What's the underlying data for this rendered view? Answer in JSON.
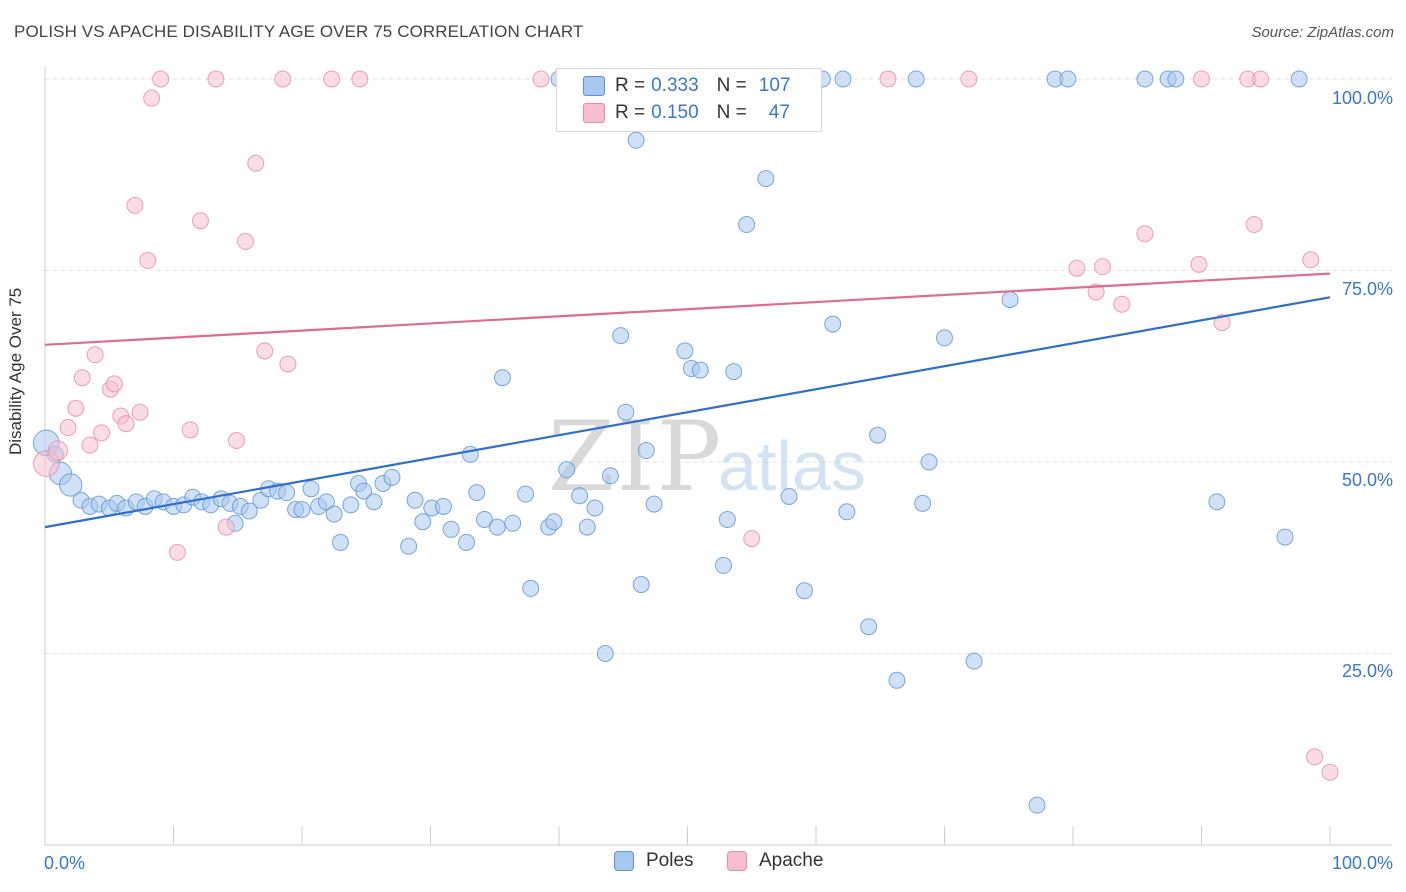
{
  "title": "POLISH VS APACHE DISABILITY AGE OVER 75 CORRELATION CHART",
  "source": "Source: ZipAtlas.com",
  "watermark": {
    "zip": "ZIP",
    "atlas": "atlas"
  },
  "legend": {
    "poles": {
      "r_label": "R =",
      "r_value": "0.333",
      "n_label": "N =",
      "n_value": "107"
    },
    "apache": {
      "r_label": "R =",
      "r_value": "0.150",
      "n_label": "N =",
      "n_value": "47"
    }
  },
  "colors": {
    "poles_fill": "#a9c8ef",
    "poles_stroke": "#5b93d6",
    "poles_line": "#2f6fcc",
    "apache_fill": "#f6bfd0",
    "apache_stroke": "#e98aa8",
    "apache_line": "#e06a92",
    "tick_label": "#3a78c9"
  },
  "chart_data": {
    "type": "scatter",
    "xlabel": "",
    "ylabel": "Disability Age Over 75",
    "xlim": [
      0,
      100
    ],
    "ylim": [
      0,
      100
    ],
    "x_tick_labels": [
      {
        "value": 0,
        "label": "0.0%"
      },
      {
        "value": 100,
        "label": "100.0%"
      }
    ],
    "y_tick_labels": [
      {
        "value": 100,
        "label": "100.0%"
      },
      {
        "value": 75,
        "label": "75.0%"
      },
      {
        "value": 50,
        "label": "50.0%"
      },
      {
        "value": 25,
        "label": "25.0%"
      }
    ],
    "grid": true,
    "series": [
      {
        "name": "Poles",
        "trend": [
          [
            0,
            41.5
          ],
          [
            100,
            71.5
          ]
        ],
        "points": [
          [
            0.1,
            52.5,
            1.6
          ],
          [
            0.8,
            51,
            1
          ],
          [
            1.2,
            48.5,
            1.4
          ],
          [
            2,
            47,
            1.4
          ],
          [
            2.8,
            45,
            1
          ],
          [
            3.5,
            44.2,
            1
          ],
          [
            4.2,
            44.5,
            1
          ],
          [
            5,
            44,
            1
          ],
          [
            5.6,
            44.6,
            1
          ],
          [
            6.3,
            44,
            1
          ],
          [
            7.1,
            44.8,
            1
          ],
          [
            7.8,
            44.2,
            1
          ],
          [
            8.5,
            45.2,
            1
          ],
          [
            9.2,
            44.8,
            1
          ],
          [
            10,
            44.2,
            1
          ],
          [
            10.8,
            44.4,
            1
          ],
          [
            11.5,
            45.4,
            1
          ],
          [
            12.2,
            44.8,
            1
          ],
          [
            12.9,
            44.4,
            1
          ],
          [
            13.7,
            45.2,
            1
          ],
          [
            14.4,
            44.6,
            1
          ],
          [
            15.2,
            44.2,
            1
          ],
          [
            14.8,
            42,
            1
          ],
          [
            15.9,
            43.6,
            1
          ],
          [
            16.8,
            45,
            1
          ],
          [
            17.4,
            46.5,
            1
          ],
          [
            18.1,
            46.2,
            1
          ],
          [
            18.8,
            46,
            1
          ],
          [
            19.5,
            43.8,
            1
          ],
          [
            20,
            43.8,
            1
          ],
          [
            20.7,
            46.5,
            1
          ],
          [
            21.3,
            44.2,
            1
          ],
          [
            21.9,
            44.8,
            1
          ],
          [
            22.5,
            43.2,
            1
          ],
          [
            23,
            39.5,
            1
          ],
          [
            23.8,
            44.4,
            1
          ],
          [
            24.4,
            47.2,
            1
          ],
          [
            24.8,
            46.2,
            1
          ],
          [
            25.6,
            44.8,
            1
          ],
          [
            26.3,
            47.2,
            1
          ],
          [
            27,
            48,
            1
          ],
          [
            28.3,
            39,
            1
          ],
          [
            28.8,
            45,
            1
          ],
          [
            29.4,
            42.2,
            1
          ],
          [
            30.1,
            44,
            1
          ],
          [
            31,
            44.2,
            1
          ],
          [
            31.6,
            41.2,
            1
          ],
          [
            32.8,
            39.5,
            1
          ],
          [
            33.1,
            51,
            1
          ],
          [
            33.6,
            46,
            1
          ],
          [
            34.2,
            42.5,
            1
          ],
          [
            35.2,
            41.5,
            1
          ],
          [
            35.6,
            61,
            1
          ],
          [
            36.4,
            42,
            1
          ],
          [
            37.4,
            45.8,
            1
          ],
          [
            37.8,
            33.5,
            1
          ],
          [
            39.2,
            41.5,
            1
          ],
          [
            39.6,
            42.2,
            1
          ],
          [
            40.6,
            49,
            1
          ],
          [
            41.6,
            45.6,
            1
          ],
          [
            42.2,
            41.5,
            1
          ],
          [
            42.8,
            44,
            1
          ],
          [
            43.6,
            25,
            1
          ],
          [
            44,
            48.2,
            1
          ],
          [
            44.8,
            66.5,
            1
          ],
          [
            45.2,
            56.5,
            1
          ],
          [
            46.4,
            34,
            1
          ],
          [
            46,
            92,
            1
          ],
          [
            46.8,
            51.5,
            1
          ],
          [
            47.4,
            44.5,
            1
          ],
          [
            49.8,
            64.5,
            1
          ],
          [
            50.3,
            62.2,
            1
          ],
          [
            51,
            62,
            1
          ],
          [
            52.8,
            36.5,
            1
          ],
          [
            53.1,
            42.5,
            1
          ],
          [
            53.6,
            61.8,
            1
          ],
          [
            54.6,
            81,
            1
          ],
          [
            56.1,
            87,
            1
          ],
          [
            56.6,
            100,
            1
          ],
          [
            57.9,
            45.5,
            1
          ],
          [
            59.1,
            33.2,
            1
          ],
          [
            61.3,
            68,
            1
          ],
          [
            62.4,
            43.5,
            1
          ],
          [
            64.1,
            28.5,
            1
          ],
          [
            64.8,
            53.5,
            1
          ],
          [
            66.3,
            21.5,
            1
          ],
          [
            68.3,
            44.6,
            1
          ],
          [
            68.8,
            50,
            1
          ],
          [
            70,
            66.2,
            1
          ],
          [
            72.3,
            24,
            1
          ],
          [
            75.1,
            71.2,
            1
          ],
          [
            77.2,
            5.2,
            1
          ],
          [
            78.6,
            100,
            1
          ],
          [
            79.6,
            100,
            1
          ],
          [
            85.6,
            100,
            1
          ],
          [
            87.4,
            100,
            1
          ],
          [
            88,
            100,
            1
          ],
          [
            97.6,
            100,
            1
          ],
          [
            91.2,
            44.8,
            1
          ],
          [
            96.5,
            40.2,
            1
          ],
          [
            60.5,
            100,
            1
          ],
          [
            58.2,
            100,
            1
          ],
          [
            62.1,
            100,
            1
          ],
          [
            67.8,
            100,
            1
          ],
          [
            40,
            100,
            1
          ],
          [
            47,
            100,
            1
          ],
          [
            51,
            100,
            1
          ]
        ]
      },
      {
        "name": "Apache",
        "trend": [
          [
            0,
            65.3
          ],
          [
            100,
            74.6
          ]
        ],
        "points": [
          [
            0.1,
            49.8,
            1.6
          ],
          [
            1.0,
            51.5,
            1.2
          ],
          [
            1.8,
            54.5,
            1
          ],
          [
            2.4,
            57,
            1
          ],
          [
            2.9,
            61,
            1
          ],
          [
            3.5,
            52.2,
            1
          ],
          [
            3.9,
            64,
            1
          ],
          [
            4.4,
            53.8,
            1
          ],
          [
            5.1,
            59.5,
            1
          ],
          [
            5.4,
            60.2,
            1
          ],
          [
            5.9,
            56,
            1
          ],
          [
            6.3,
            55,
            1
          ],
          [
            7.0,
            83.5,
            1
          ],
          [
            7.4,
            56.5,
            1
          ],
          [
            8.0,
            76.3,
            1
          ],
          [
            8.3,
            97.5,
            1
          ],
          [
            9.0,
            100,
            1
          ],
          [
            10.3,
            38.2,
            1
          ],
          [
            11.3,
            54.2,
            1
          ],
          [
            12.1,
            81.5,
            1
          ],
          [
            13.3,
            100,
            1
          ],
          [
            14.1,
            41.5,
            1
          ],
          [
            14.9,
            52.8,
            1
          ],
          [
            15.6,
            78.8,
            1
          ],
          [
            16.4,
            89,
            1
          ],
          [
            17.1,
            64.5,
            1
          ],
          [
            18.5,
            100,
            1
          ],
          [
            18.9,
            62.8,
            1
          ],
          [
            22.3,
            100,
            1
          ],
          [
            24.5,
            100,
            1
          ],
          [
            38.6,
            100,
            1
          ],
          [
            43.2,
            100,
            1
          ],
          [
            55,
            40,
            1
          ],
          [
            65.6,
            100,
            1
          ],
          [
            71.9,
            100,
            1
          ],
          [
            80.3,
            75.3,
            1
          ],
          [
            81.8,
            72.2,
            1
          ],
          [
            82.3,
            75.5,
            1
          ],
          [
            83.8,
            70.6,
            1
          ],
          [
            85.6,
            79.8,
            1
          ],
          [
            89.8,
            75.8,
            1
          ],
          [
            90,
            100,
            1
          ],
          [
            91.6,
            68.2,
            1
          ],
          [
            93.6,
            100,
            1
          ],
          [
            94.1,
            81,
            1
          ],
          [
            94.6,
            100,
            1
          ],
          [
            98.5,
            76.4,
            1
          ],
          [
            98.8,
            11.5,
            1
          ],
          [
            100,
            9.5,
            1
          ]
        ]
      }
    ]
  },
  "bottom_legend": {
    "poles": "Poles",
    "apache": "Apache"
  }
}
